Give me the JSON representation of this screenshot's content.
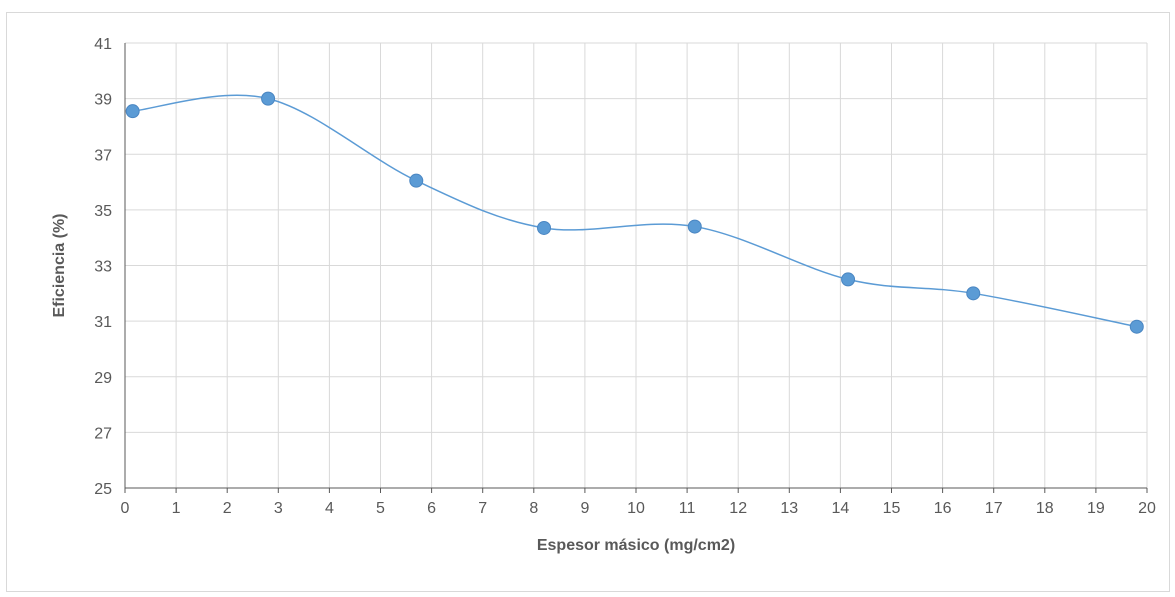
{
  "chart_data": {
    "type": "line",
    "title": "",
    "xlabel": "Espesor másico (mg/cm2)",
    "ylabel": "Eficiencia (%)",
    "xlim": [
      0,
      20
    ],
    "ylim": [
      25,
      41
    ],
    "x_ticks": [
      0,
      1,
      2,
      3,
      4,
      5,
      6,
      7,
      8,
      9,
      10,
      11,
      12,
      13,
      14,
      15,
      16,
      17,
      18,
      19,
      20
    ],
    "y_ticks": [
      25,
      27,
      29,
      31,
      33,
      35,
      37,
      39,
      41
    ],
    "grid": true,
    "legend": "none",
    "smooth": true,
    "line_color": "#5b9bd5",
    "marker_color": "#5b9bd5",
    "series": [
      {
        "x": [
          0.15,
          2.8,
          5.7,
          8.2,
          11.15,
          14.15,
          16.6,
          19.8
        ],
        "y": [
          38.55,
          39.0,
          36.05,
          34.35,
          34.4,
          32.5,
          32.0,
          30.8
        ]
      }
    ]
  }
}
